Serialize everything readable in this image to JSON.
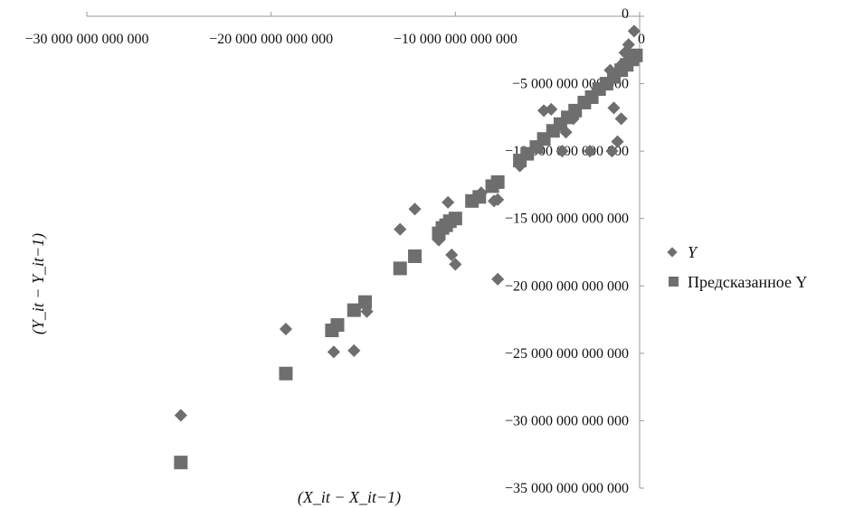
{
  "chart_data": {
    "type": "scatter",
    "title": "",
    "xlabel": "(X_it − X_it−1)",
    "ylabel": "(Y_it − Y_it−1)",
    "xlim": [
      -30000000000000,
      0
    ],
    "ylim": [
      -35000000000000,
      0
    ],
    "x_ticks": [
      -30000000000000,
      -20000000000000,
      -10000000000000,
      0
    ],
    "x_tick_labels": [
      "−30 000 000 000 000",
      "−20 000 000 000 000",
      "−10 000 000 000 000",
      "0"
    ],
    "y_ticks": [
      0,
      -5000000000000,
      -10000000000000,
      -15000000000000,
      -20000000000000,
      -25000000000000,
      -30000000000000,
      -35000000000000
    ],
    "y_tick_labels": [
      "0",
      "−5 000 000 000 000",
      "−10 000 000 000 000",
      "−15 000 000 000 000",
      "−20 000 000 000 000",
      "−25 000 000 000 000",
      "−30 000 000 000 000",
      "−35 000 000 000 000"
    ],
    "grid": false,
    "legend_position": "right",
    "colors": {
      "marker": "#6e6e6e",
      "axis": "#9a9a9a",
      "text": "#111111"
    },
    "series": [
      {
        "name": "Y",
        "marker": "diamond",
        "points": [
          [
            -24900000000000,
            -29600000000000
          ],
          [
            -19200000000000,
            -23200000000000
          ],
          [
            -16600000000000,
            -24900000000000
          ],
          [
            -15500000000000,
            -24800000000000
          ],
          [
            -14800000000000,
            -21900000000000
          ],
          [
            -13000000000000,
            -15800000000000
          ],
          [
            -12200000000000,
            -14300000000000
          ],
          [
            -10900000000000,
            -16600000000000
          ],
          [
            -10400000000000,
            -13800000000000
          ],
          [
            -10200000000000,
            -17700000000000
          ],
          [
            -10000000000000,
            -18400000000000
          ],
          [
            -8600000000000,
            -13100000000000
          ],
          [
            -7900000000000,
            -13700000000000
          ],
          [
            -7700000000000,
            -13600000000000
          ],
          [
            -7700000000000,
            -19500000000000
          ],
          [
            -6500000000000,
            -11100000000000
          ],
          [
            -5200000000000,
            -7000000000000
          ],
          [
            -4800000000000,
            -6900000000000
          ],
          [
            -4000000000000,
            -8600000000000
          ],
          [
            -3600000000000,
            -7600000000000
          ],
          [
            -2900000000000,
            -6400000000000
          ],
          [
            -2300000000000,
            -5400000000000
          ],
          [
            -1600000000000,
            -4000000000000
          ],
          [
            -1500000000000,
            -10000000000000
          ],
          [
            -1400000000000,
            -6800000000000
          ],
          [
            -1200000000000,
            -9300000000000
          ],
          [
            -1000000000000,
            -3600000000000
          ],
          [
            -800000000000,
            -2700000000000
          ],
          [
            -600000000000,
            -2100000000000
          ],
          [
            -300000000000,
            -1100000000000
          ],
          [
            -1000000000000,
            -7600000000000
          ],
          [
            -4200000000000,
            -10000000000000
          ],
          [
            -2700000000000,
            -10000000000000
          ]
        ]
      },
      {
        "name": "Предсказанное Y",
        "marker": "square",
        "points": [
          [
            -24900000000000,
            -33100000000000
          ],
          [
            -19200000000000,
            -26500000000000
          ],
          [
            -16700000000000,
            -23300000000000
          ],
          [
            -16400000000000,
            -22900000000000
          ],
          [
            -15500000000000,
            -21800000000000
          ],
          [
            -14900000000000,
            -21200000000000
          ],
          [
            -13000000000000,
            -18700000000000
          ],
          [
            -12200000000000,
            -17800000000000
          ],
          [
            -10900000000000,
            -16100000000000
          ],
          [
            -10700000000000,
            -15700000000000
          ],
          [
            -10500000000000,
            -15500000000000
          ],
          [
            -10300000000000,
            -15200000000000
          ],
          [
            -10000000000000,
            -15000000000000
          ],
          [
            -9100000000000,
            -13700000000000
          ],
          [
            -8700000000000,
            -13400000000000
          ],
          [
            -8000000000000,
            -12600000000000
          ],
          [
            -7700000000000,
            -12300000000000
          ],
          [
            -6500000000000,
            -10700000000000
          ],
          [
            -6100000000000,
            -10200000000000
          ],
          [
            -5600000000000,
            -9700000000000
          ],
          [
            -5200000000000,
            -9100000000000
          ],
          [
            -4700000000000,
            -8500000000000
          ],
          [
            -4300000000000,
            -8000000000000
          ],
          [
            -3900000000000,
            -7500000000000
          ],
          [
            -3500000000000,
            -7000000000000
          ],
          [
            -3000000000000,
            -6400000000000
          ],
          [
            -2600000000000,
            -6000000000000
          ],
          [
            -2200000000000,
            -5400000000000
          ],
          [
            -1800000000000,
            -5000000000000
          ],
          [
            -1400000000000,
            -4500000000000
          ],
          [
            -1000000000000,
            -4000000000000
          ],
          [
            -700000000000,
            -3600000000000
          ],
          [
            -400000000000,
            -3200000000000
          ],
          [
            -200000000000,
            -2900000000000
          ]
        ]
      }
    ]
  }
}
